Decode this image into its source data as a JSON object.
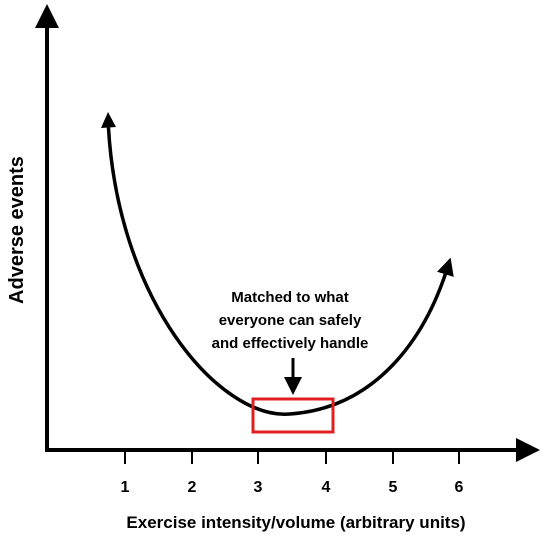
{
  "diagram": {
    "x_axis_title": "Exercise intensity/volume (arbitrary units)",
    "y_axis_title": "Adverse events",
    "x_ticks": [
      "1",
      "2",
      "3",
      "4",
      "5",
      "6"
    ],
    "annotation_lines": [
      "Matched to what",
      "everyone can safely",
      "and effectively handle"
    ],
    "highlight_color": "#e02020",
    "line_color": "#000000"
  }
}
